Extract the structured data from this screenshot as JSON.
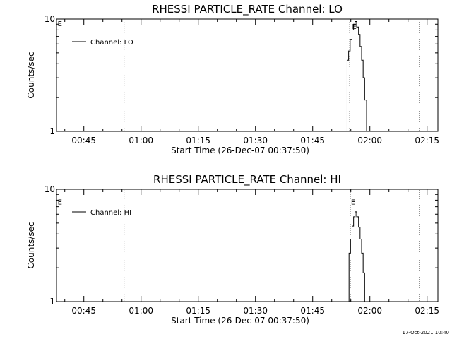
{
  "chart_data": [
    {
      "type": "line",
      "title": "RHESSI PARTICLE_RATE Channel: LO",
      "xlabel": "Start Time (26-Dec-07 00:37:50)",
      "ylabel": "Counts/sec",
      "y_scale": "log",
      "ylim": [
        1,
        10
      ],
      "y_ticks": [
        {
          "value": 1,
          "label": "1"
        },
        {
          "value": 10,
          "label": "10"
        }
      ],
      "x_unit": "minutes after 00:37:50",
      "xlim": [
        0,
        100
      ],
      "x_ticks": [
        {
          "value": 7.17,
          "label": "00:45"
        },
        {
          "value": 22.17,
          "label": "01:00"
        },
        {
          "value": 37.17,
          "label": "01:15"
        },
        {
          "value": 52.17,
          "label": "01:30"
        },
        {
          "value": 67.17,
          "label": "01:45"
        },
        {
          "value": 82.17,
          "label": "02:00"
        },
        {
          "value": 97.17,
          "label": "02:15"
        }
      ],
      "vlines": [
        17.7,
        76.9,
        95.2
      ],
      "markers": [
        {
          "x": 0.3,
          "y": 9.3,
          "label": "E"
        },
        {
          "x": 77.5,
          "y": 8.8,
          "label": "E"
        }
      ],
      "legend": {
        "position": "top-left",
        "entries": [
          "Channel: LO"
        ]
      },
      "series": [
        {
          "name": "Channel: LO",
          "x": [
            75.8,
            76.2,
            76.6,
            77.0,
            77.5,
            77.9,
            78.3,
            78.7,
            79.2,
            79.6,
            80.0,
            80.4,
            80.8,
            81.3
          ],
          "y": [
            1.0,
            4.3,
            5.2,
            6.6,
            8.0,
            9.0,
            9.5,
            8.5,
            7.3,
            5.7,
            4.3,
            3.0,
            1.9,
            1.0
          ]
        }
      ]
    },
    {
      "type": "line",
      "title": "RHESSI PARTICLE_RATE Channel: HI",
      "xlabel": "Start Time (26-Dec-07 00:37:50)",
      "ylabel": "Counts/sec",
      "y_scale": "log",
      "ylim": [
        1,
        10
      ],
      "y_ticks": [
        {
          "value": 1,
          "label": "1"
        },
        {
          "value": 10,
          "label": "10"
        }
      ],
      "x_unit": "minutes after 00:37:50",
      "xlim": [
        0,
        100
      ],
      "x_ticks": [
        {
          "value": 7.17,
          "label": "00:45"
        },
        {
          "value": 22.17,
          "label": "01:00"
        },
        {
          "value": 37.17,
          "label": "01:15"
        },
        {
          "value": 52.17,
          "label": "01:30"
        },
        {
          "value": 67.17,
          "label": "01:45"
        },
        {
          "value": 82.17,
          "label": "02:00"
        },
        {
          "value": 97.17,
          "label": "02:15"
        }
      ],
      "vlines": [
        17.7,
        77.0,
        95.2
      ],
      "markers": [
        {
          "x": 0.3,
          "y": 7.9,
          "label": "E"
        },
        {
          "x": 77.2,
          "y": 7.9,
          "label": "E"
        }
      ],
      "legend": {
        "position": "top-left",
        "entries": [
          "Channel: HI"
        ]
      },
      "series": [
        {
          "name": "Channel: HI",
          "x": [
            76.3,
            76.7,
            77.1,
            77.5,
            77.9,
            78.3,
            78.7,
            79.2,
            79.6,
            80.0,
            80.4,
            80.8
          ],
          "y": [
            1.0,
            2.7,
            3.6,
            4.7,
            5.7,
            6.3,
            5.7,
            4.6,
            3.6,
            2.7,
            1.8,
            1.0
          ]
        }
      ]
    }
  ],
  "footer": {
    "timestamp": "17-Oct-2021 10:40"
  }
}
